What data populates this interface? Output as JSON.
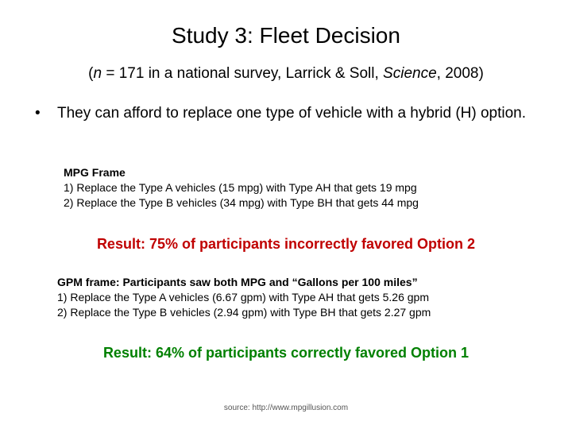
{
  "title": "Study 3:  Fleet Decision",
  "subtitle": {
    "open": "(",
    "n": "n",
    "mid": " = 171 in a national survey, Larrick & Soll, ",
    "journal": "Science",
    "end": ", 2008)"
  },
  "bullet": {
    "symbol": "•",
    "text": "They can afford to replace one type of vehicle with a hybrid (H) option."
  },
  "mpg_frame": {
    "header": "MPG Frame",
    "items": [
      "1) Replace the Type A vehicles (15 mpg) with Type AH that gets 19 mpg",
      "2) Replace the Type B vehicles (34 mpg) with Type BH that gets 44 mpg"
    ]
  },
  "result_1": "Result:  75% of participants incorrectly favored Option 2",
  "gpm_frame": {
    "header": "GPM frame: Participants saw both MPG and “Gallons per 100 miles”",
    "items": [
      "1)  Replace the Type A vehicles (6.67 gpm) with Type AH that gets 5.26 gpm",
      "2)  Replace the Type B vehicles (2.94 gpm) with Type BH that gets 2.27 gpm"
    ]
  },
  "result_2": "Result:  64% of participants correctly favored Option 1",
  "source": "source:  http://www.mpgillusion.com",
  "colors": {
    "result_1": "#c00000",
    "result_2": "#008000"
  }
}
